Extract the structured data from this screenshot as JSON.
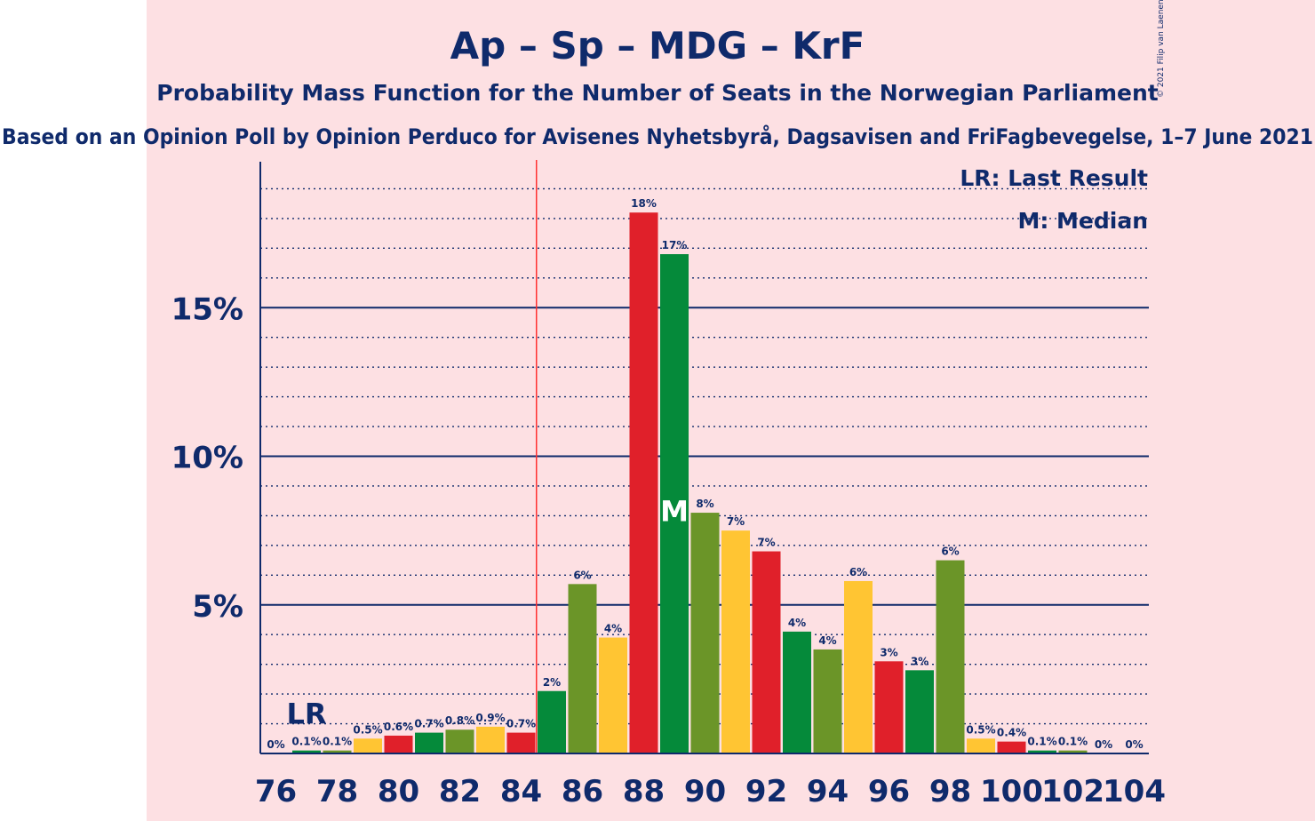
{
  "chart_data": {
    "type": "bar",
    "title": "Ap – Sp – MDG – KrF",
    "subtitle": "Probability Mass Function for the Number of Seats in the Norwegian Parliament",
    "subtitle2": "Based on an Opinion Poll by Opinion Perduco for Avisenes Nyhetsbyrå, Dagsavisen and FriFagbevegelse, 1–7 June 2021",
    "copyright": "© 2021 Filip van Laenen",
    "legend": [
      "LR: Last Result",
      "M: Median"
    ],
    "legend_position": "top-right",
    "x": [
      76,
      77,
      78,
      79,
      80,
      81,
      82,
      83,
      84,
      85,
      86,
      87,
      88,
      89,
      90,
      91,
      92,
      93,
      94,
      95,
      96,
      97,
      98,
      99,
      100,
      101,
      102,
      103,
      104
    ],
    "values": [
      0,
      0.1,
      0.1,
      0.5,
      0.6,
      0.7,
      0.8,
      0.9,
      0.7,
      2.1,
      5.7,
      3.9,
      18.2,
      16.8,
      8.1,
      7.5,
      6.8,
      4.1,
      3.5,
      5.8,
      3.1,
      2.8,
      6.5,
      0.5,
      0.4,
      0.1,
      0.1,
      0,
      0
    ],
    "labels": [
      "0%",
      "0.1%",
      "0.1%",
      "0.5%",
      "0.6%",
      "0.7%",
      "0.8%",
      "0.9%",
      "0.7%",
      "2%",
      "6%",
      "4%",
      "18%",
      "17%",
      "8%",
      "7%",
      "7%",
      "4%",
      "4%",
      "6%",
      "3%",
      "3%",
      "6%",
      "0.5%",
      "0.4%",
      "0.1%",
      "0.1%",
      "0%",
      "0%"
    ],
    "x_ticks": [
      76,
      78,
      80,
      82,
      84,
      86,
      88,
      90,
      92,
      94,
      96,
      98,
      100,
      102,
      104
    ],
    "y_ticks": [
      {
        "value": 5,
        "label": "5%"
      },
      {
        "value": 10,
        "label": "10%"
      },
      {
        "value": 15,
        "label": "15%"
      }
    ],
    "ylim": [
      0,
      20
    ],
    "minor_grid_step": 1,
    "majority_line": 84.5,
    "last_result": {
      "seat": 77,
      "label": "LR"
    },
    "median": {
      "seat": 89,
      "label": "M"
    },
    "colors": {
      "red": "#e0202a",
      "olive": "#6b9528",
      "yellow": "#ffc533",
      "green": "#058a3a",
      "navy": "#0f2a6b",
      "pink_bg": "#fde0e3",
      "majority": "#ff3030"
    },
    "bar_colors": [
      "red",
      "green",
      "olive",
      "yellow",
      "red",
      "green",
      "olive",
      "yellow",
      "red",
      "green",
      "olive",
      "yellow",
      "red",
      "green",
      "olive",
      "yellow",
      "red",
      "green",
      "olive",
      "yellow",
      "red",
      "green",
      "olive",
      "yellow",
      "red",
      "green",
      "olive",
      "yellow",
      "red"
    ]
  }
}
